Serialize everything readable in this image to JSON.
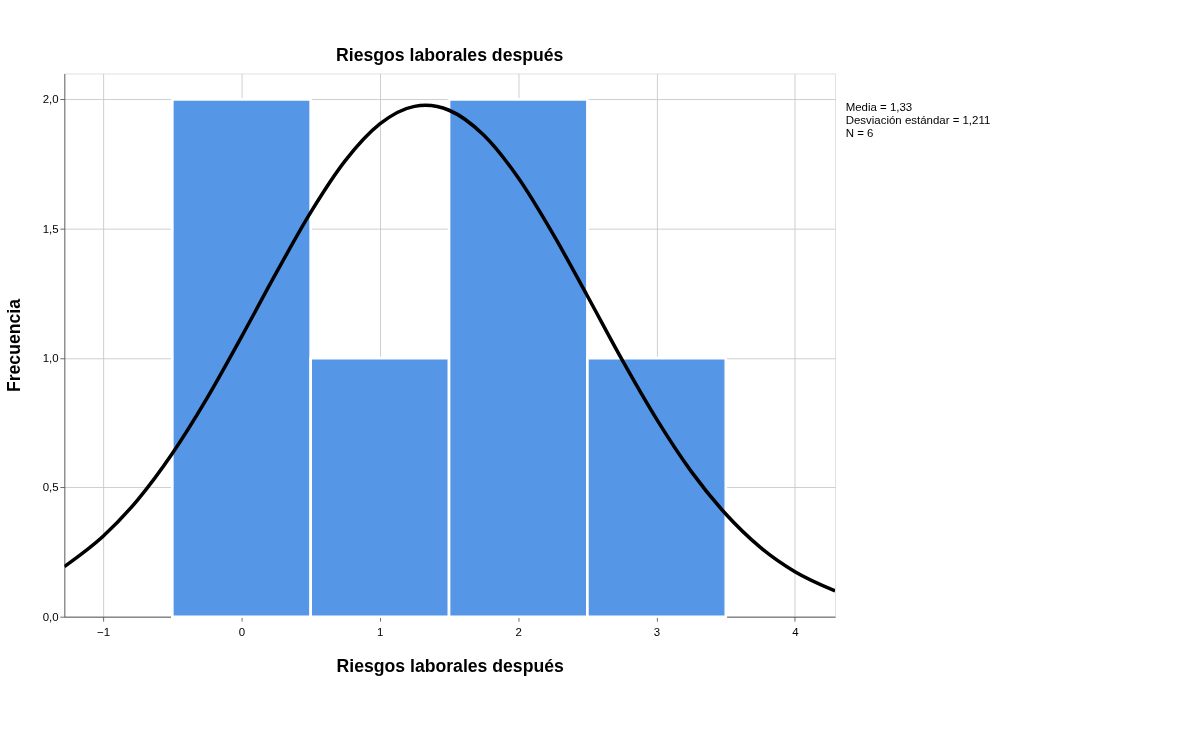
{
  "chart_data": {
    "type": "histogram",
    "title": "Riesgos laborales después",
    "xlabel": "Riesgos laborales después",
    "ylabel": "Frecuencia",
    "bins": [
      -0.5,
      0.5,
      1.5,
      2.5,
      3.5
    ],
    "values": [
      2,
      1,
      2,
      1
    ],
    "color": "#5596e6",
    "series": [
      {
        "type": "line",
        "color": "#000000",
        "x": [
          -1.28,
          -1.0,
          -0.75,
          -0.5,
          -0.25,
          0,
          0.25,
          0.5,
          0.75,
          1.0,
          1.25,
          1.33,
          1.5,
          1.75,
          2.0,
          2.25,
          2.5,
          2.75,
          3.0,
          3.25,
          3.5,
          3.75,
          4.0,
          4.29
        ],
        "values": [
          0.194,
          0.311,
          0.452,
          0.631,
          0.844,
          1.082,
          1.328,
          1.563,
          1.763,
          1.905,
          1.973,
          1.977,
          1.958,
          1.862,
          1.697,
          1.481,
          1.24,
          0.994,
          0.764,
          0.562,
          0.397,
          0.268,
          0.174,
          0.1
        ]
      }
    ],
    "xlim": [
      -1.28,
      4.29
    ],
    "xticks": [
      -1,
      0,
      1,
      2,
      3,
      4
    ],
    "ylim": [
      0,
      2.1
    ],
    "yticks": [
      {
        "value": 0,
        "label": "0,0"
      },
      {
        "value": 0.5,
        "label": "0,5"
      },
      {
        "value": 1.0,
        "label": "1,0"
      },
      {
        "value": 1.5,
        "label": "1,5"
      },
      {
        "value": 2.0,
        "label": "2,0"
      }
    ],
    "grid": true,
    "annotations": [
      "Media = 1,33",
      "Desviación estándar = 1,211",
      "N = 6"
    ]
  }
}
